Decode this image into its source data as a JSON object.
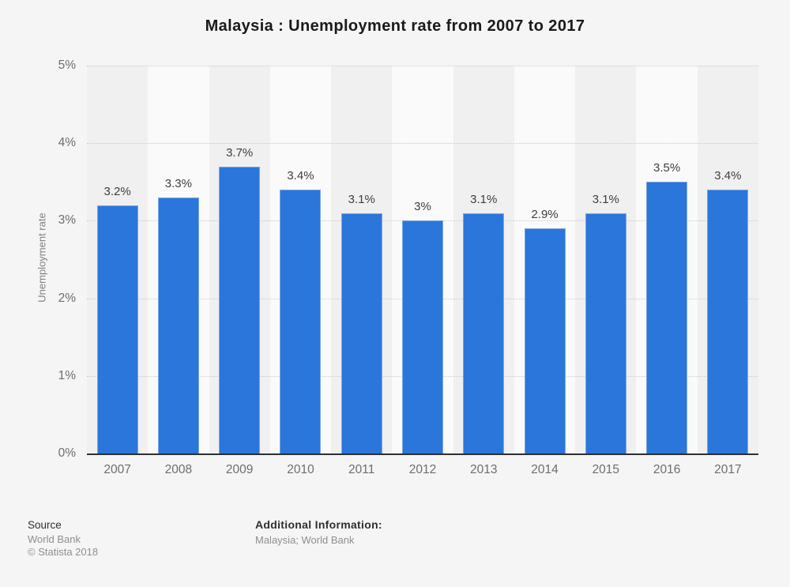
{
  "title": "Malaysia : Unemployment rate from 2007 to 2017",
  "chart_data": {
    "type": "bar",
    "title": "Malaysia : Unemployment rate from 2007 to 2017",
    "categories": [
      "2007",
      "2008",
      "2009",
      "2010",
      "2011",
      "2012",
      "2013",
      "2014",
      "2015",
      "2016",
      "2017"
    ],
    "values": [
      3.2,
      3.3,
      3.7,
      3.4,
      3.1,
      3.0,
      3.1,
      2.9,
      3.1,
      3.5,
      3.4
    ],
    "value_labels": [
      "3.2%",
      "3.3%",
      "3.7%",
      "3.4%",
      "3.1%",
      "3%",
      "3.1%",
      "2.9%",
      "3.1%",
      "3.5%",
      "3.4%"
    ],
    "xlabel": "",
    "ylabel": "Unemployment rate",
    "ylim": [
      0,
      5
    ],
    "y_ticks": [
      "0%",
      "1%",
      "2%",
      "3%",
      "4%",
      "5%"
    ],
    "grid": "horizontal dotted, every 1%",
    "legend": "none",
    "bar_color": "#2b76da",
    "bar_edge_color": "#7ba6e5",
    "band_colors": [
      "#f0f0f0",
      "#fafafa"
    ],
    "background_color": "#f5f5f5",
    "axis_color": "#2e2e2e"
  },
  "footer": {
    "source_label": "Source",
    "source_lines": [
      "World Bank",
      "© Statista 2018"
    ],
    "additional_label": "Additional Information:",
    "additional_value": "Malaysia; World Bank"
  }
}
